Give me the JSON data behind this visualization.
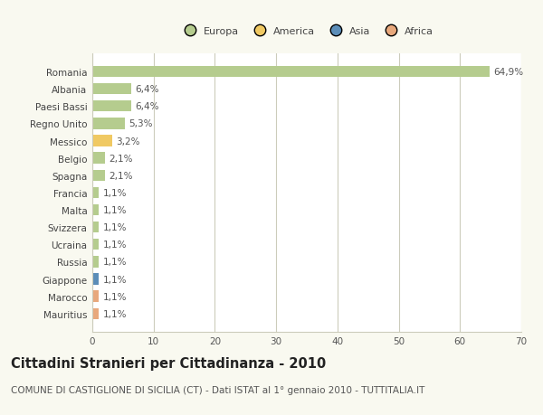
{
  "countries": [
    "Romania",
    "Albania",
    "Paesi Bassi",
    "Regno Unito",
    "Messico",
    "Belgio",
    "Spagna",
    "Francia",
    "Malta",
    "Svizzera",
    "Ucraina",
    "Russia",
    "Giappone",
    "Marocco",
    "Mauritius"
  ],
  "values": [
    64.9,
    6.4,
    6.4,
    5.3,
    3.2,
    2.1,
    2.1,
    1.1,
    1.1,
    1.1,
    1.1,
    1.1,
    1.1,
    1.1,
    1.1
  ],
  "labels": [
    "64,9%",
    "6,4%",
    "6,4%",
    "5,3%",
    "3,2%",
    "2,1%",
    "2,1%",
    "1,1%",
    "1,1%",
    "1,1%",
    "1,1%",
    "1,1%",
    "1,1%",
    "1,1%",
    "1,1%"
  ],
  "categories": [
    "Europa",
    "Europa",
    "Europa",
    "Europa",
    "America",
    "Europa",
    "Europa",
    "Europa",
    "Europa",
    "Europa",
    "Europa",
    "Europa",
    "Asia",
    "Africa",
    "Africa"
  ],
  "category_colors": {
    "Europa": "#b5cc8e",
    "America": "#f0c963",
    "Asia": "#5b8db8",
    "Africa": "#e8a87c"
  },
  "legend_categories": [
    "Europa",
    "America",
    "Asia",
    "Africa"
  ],
  "legend_colors": [
    "#b5cc8e",
    "#f0c963",
    "#5b8db8",
    "#e8a87c"
  ],
  "xlim": [
    0,
    70
  ],
  "xticks": [
    0,
    10,
    20,
    30,
    40,
    50,
    60,
    70
  ],
  "title": "Cittadini Stranieri per Cittadinanza - 2010",
  "subtitle": "COMUNE DI CASTIGLIONE DI SICILIA (CT) - Dati ISTAT al 1° gennaio 2010 - TUTTITALIA.IT",
  "background_color": "#f9f9f0",
  "plot_bg_color": "#ffffff",
  "grid_color": "#ccccbb",
  "bar_height": 0.65,
  "title_fontsize": 10.5,
  "subtitle_fontsize": 7.5,
  "label_fontsize": 7.5,
  "tick_fontsize": 7.5,
  "legend_fontsize": 8
}
